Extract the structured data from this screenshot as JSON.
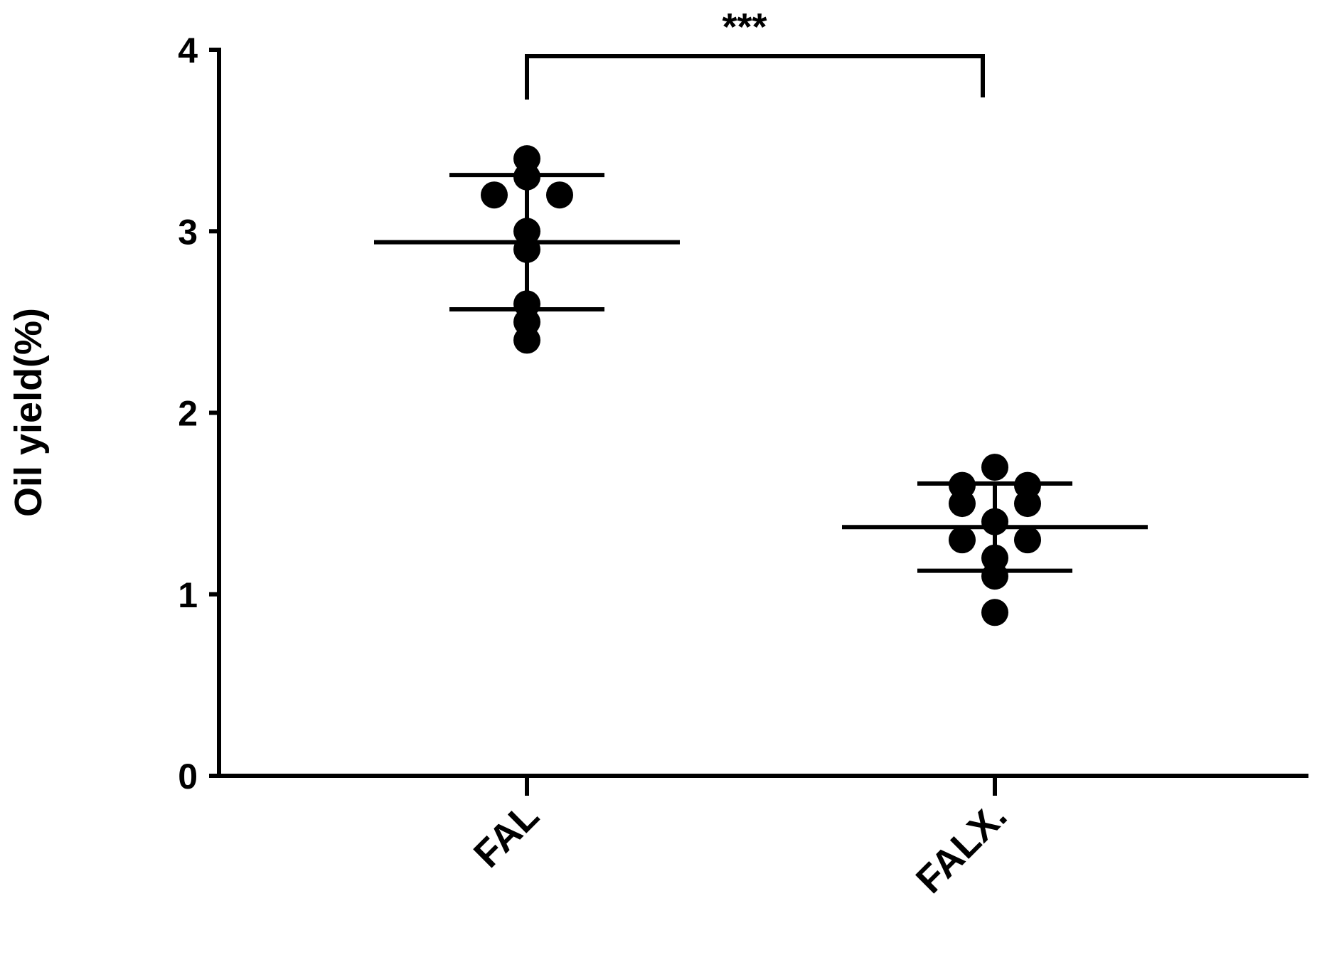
{
  "chart_data": {
    "type": "dot",
    "y_label": "Oil yield(%)",
    "categories": [
      "FAL",
      "FALX."
    ],
    "groups": [
      {
        "values": [
          3.3,
          3.4,
          3.2,
          3.2,
          3.0,
          2.9,
          2.6,
          2.5,
          2.4
        ],
        "mean": 2.94,
        "sd": 0.37
      },
      {
        "values": [
          1.7,
          1.6,
          1.6,
          1.5,
          1.5,
          1.4,
          1.3,
          1.3,
          1.2,
          1.1,
          0.9
        ],
        "mean": 1.37,
        "sd": 0.24
      }
    ],
    "color": "#000000",
    "ylim": [
      0,
      4
    ],
    "yticks": [
      0,
      1,
      2,
      3,
      4
    ],
    "annotation": "***"
  }
}
